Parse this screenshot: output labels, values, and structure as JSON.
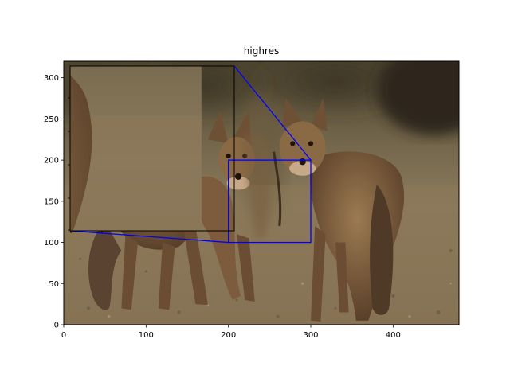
{
  "chart_data": {
    "type": "image",
    "title": "highres",
    "image_description": "two coyotes standing on gravelly dirt ground with blurred desert shrubs behind",
    "image_extent": {
      "x": [
        0,
        480
      ],
      "y": [
        0,
        320
      ]
    },
    "xlim": [
      0,
      480
    ],
    "ylim": [
      0,
      320
    ],
    "xticks": [
      0,
      100,
      200,
      300,
      400
    ],
    "yticks": [
      0,
      50,
      100,
      150,
      200,
      250,
      300
    ],
    "zoom_region": {
      "x": [
        200,
        300
      ],
      "y": [
        100,
        200
      ]
    },
    "inset_xlim": [
      200,
      300
    ],
    "inset_ylim": [
      100,
      200
    ],
    "indicator_color": "#0000ff",
    "grid": false,
    "colors": {
      "ground": "#8a7556",
      "ground_dark": "#6e5a41",
      "bg_brush": "#5e5238",
      "coyote_fur": "#8a6a45",
      "coyote_dark": "#3e2e1e",
      "coyote_light": "#c7a987"
    }
  }
}
